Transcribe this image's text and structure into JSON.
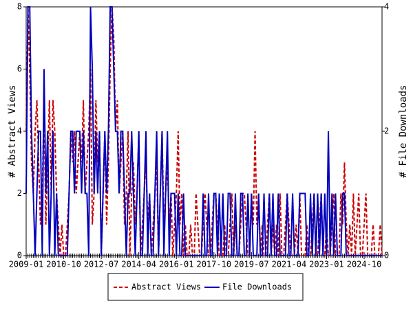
{
  "chart_data": {
    "type": "line",
    "categories": [
      "2009-01",
      null,
      null,
      null,
      null,
      null,
      null,
      null,
      null,
      null,
      null,
      null,
      null,
      null,
      null,
      null,
      null,
      null,
      null,
      null,
      null,
      "2010-10",
      null,
      null,
      null,
      null,
      null,
      null,
      null,
      null,
      null,
      null,
      null,
      null,
      null,
      null,
      null,
      null,
      null,
      null,
      null,
      null,
      "2012-07",
      null,
      null,
      null,
      null,
      null,
      null,
      null,
      null,
      null,
      null,
      null,
      null,
      null,
      null,
      null,
      null,
      null,
      null,
      null,
      null,
      "2014-04",
      null,
      null,
      null,
      null,
      null,
      null,
      null,
      null,
      null,
      null,
      null,
      null,
      null,
      null,
      null,
      null,
      null,
      null,
      null,
      null,
      "2016-01",
      null,
      null,
      null,
      null,
      null,
      null,
      null,
      null,
      null,
      null,
      null,
      null,
      null,
      null,
      null,
      null,
      null,
      null,
      null,
      null,
      "2017-10",
      null,
      null,
      null,
      null,
      null,
      null,
      null,
      null,
      null,
      null,
      null,
      null,
      null,
      null,
      null,
      null,
      null,
      null,
      null,
      null,
      "2019-07",
      null,
      null,
      null,
      null,
      null,
      null,
      null,
      null,
      null,
      null,
      null,
      null,
      null,
      null,
      null,
      null,
      null,
      null,
      null,
      null,
      "2021-04",
      null,
      null,
      null,
      null,
      null,
      null,
      null,
      null,
      null,
      null,
      null,
      null,
      null,
      null,
      null,
      null,
      null,
      null,
      null,
      null,
      "2023-01",
      null,
      null,
      null,
      null,
      null,
      null,
      null,
      null,
      null,
      null,
      null,
      null,
      null,
      null,
      null,
      null,
      null,
      null,
      null,
      null,
      "2024-10",
      null,
      null,
      null,
      null,
      null,
      null,
      null,
      null,
      null,
      null
    ],
    "ylabel": "# Abstract Views",
    "y2label": "# File Downloads",
    "ylim": [
      0,
      8
    ],
    "yticks": [
      0,
      2,
      4,
      6,
      8
    ],
    "y2lim": [
      0,
      4
    ],
    "y2ticks": [
      0,
      2,
      4
    ],
    "series": [
      {
        "name": "Abstract Views",
        "color": "#cc0000",
        "dashed": true,
        "values": [
          4,
          8,
          6,
          3,
          2,
          4,
          5,
          3,
          1,
          2,
          5,
          1,
          3,
          5,
          2,
          5,
          4,
          2,
          1,
          0,
          1,
          0,
          0,
          1,
          2,
          4,
          3,
          4,
          2,
          3,
          4,
          3,
          5,
          2,
          3,
          4,
          6,
          1,
          2,
          5,
          3,
          4,
          0,
          2,
          4,
          1,
          3,
          6,
          8,
          7,
          4,
          5,
          2,
          3,
          4,
          1,
          2,
          4,
          0,
          2,
          3,
          1,
          2,
          4,
          0,
          1,
          2,
          3,
          1,
          2,
          0,
          1,
          2,
          3,
          0,
          2,
          4,
          1,
          2,
          3,
          1,
          2,
          0,
          1,
          2,
          4,
          1,
          2,
          0,
          1,
          0,
          0,
          1,
          0,
          0,
          2,
          1,
          0,
          0,
          1,
          2,
          1,
          0,
          0,
          1,
          2,
          2,
          1,
          0,
          0,
          0,
          1,
          0,
          0,
          1,
          2,
          0,
          1,
          0,
          0,
          1,
          2,
          2,
          1,
          0,
          0,
          2,
          1,
          4,
          1,
          2,
          0,
          1,
          0,
          0,
          1,
          2,
          0,
          1,
          0,
          1,
          0,
          2,
          0,
          0,
          1,
          2,
          1,
          0,
          0,
          0,
          1,
          0,
          2,
          0,
          0,
          0,
          1,
          0,
          0,
          1,
          2,
          0,
          0,
          1,
          2,
          0,
          0,
          1,
          0,
          0,
          1,
          2,
          0,
          0,
          0,
          2,
          1,
          3,
          1,
          0,
          1,
          0,
          2,
          0,
          1,
          2,
          0,
          0,
          1,
          2,
          0,
          0,
          0,
          1,
          0,
          0,
          0,
          1,
          0
        ]
      },
      {
        "name": "File Downloads",
        "color": "#0000bb",
        "axis": "y2",
        "dashed": false,
        "values": [
          1,
          4,
          4,
          2,
          1,
          0,
          1,
          2,
          2,
          0,
          3,
          1,
          2,
          0,
          1,
          2,
          0,
          1,
          0,
          0,
          0,
          0,
          0,
          0,
          1,
          2,
          2,
          1,
          2,
          2,
          2,
          1,
          2,
          1,
          1,
          0,
          4,
          3,
          1,
          2,
          1,
          2,
          0,
          1,
          2,
          1,
          2,
          4,
          4,
          3,
          2,
          2,
          1,
          2,
          2,
          1,
          0,
          1,
          1,
          2,
          1,
          0,
          1,
          2,
          0,
          0,
          1,
          2,
          0,
          1,
          0,
          0,
          1,
          2,
          0,
          1,
          2,
          0,
          1,
          2,
          0,
          1,
          1,
          1,
          0,
          1,
          0,
          0,
          1,
          0,
          0,
          0,
          0,
          0,
          0,
          0,
          0,
          0,
          0,
          1,
          0,
          0,
          1,
          0,
          0,
          1,
          1,
          0,
          1,
          0,
          1,
          0,
          0,
          1,
          1,
          0,
          0,
          1,
          0,
          0,
          1,
          1,
          0,
          0,
          1,
          0,
          1,
          0,
          0,
          0,
          1,
          0,
          0,
          1,
          0,
          0,
          1,
          0,
          1,
          0,
          0,
          1,
          0,
          0,
          0,
          0,
          1,
          0,
          0,
          1,
          0,
          0,
          0,
          1,
          1,
          1,
          1,
          0,
          0,
          1,
          0,
          1,
          0,
          1,
          0,
          1,
          0,
          1,
          0,
          2,
          0,
          1,
          0,
          1,
          0,
          0,
          0,
          1,
          1,
          0,
          0,
          0,
          0,
          0,
          0,
          0,
          0,
          0,
          0,
          0,
          0,
          0,
          0,
          0,
          0,
          0,
          0,
          0,
          0,
          0
        ]
      }
    ]
  }
}
